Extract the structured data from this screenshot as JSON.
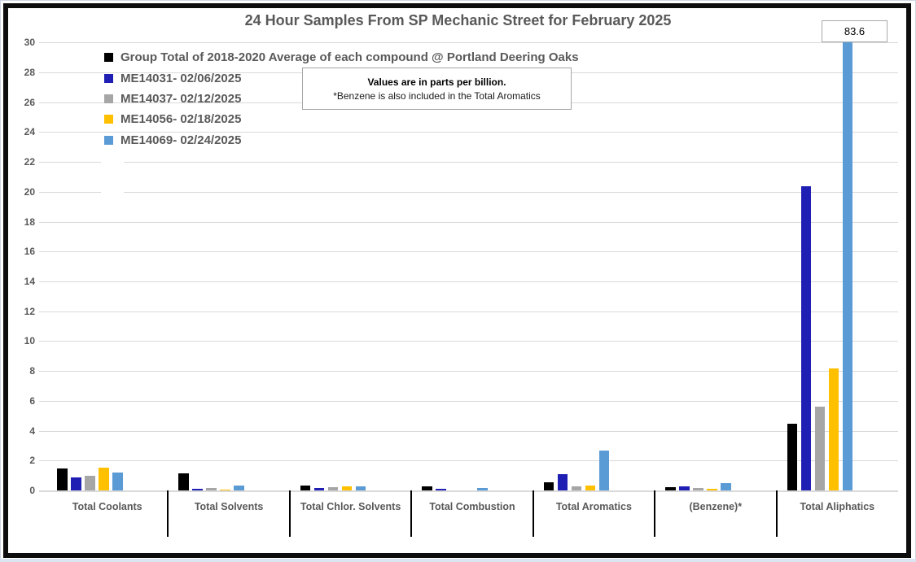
{
  "title": "24 Hour Samples From SP Mechanic Street for February 2025",
  "note_box": {
    "line1": "Values are in parts per billion.",
    "line2": "*Benzene is also included in the Total Aromatics"
  },
  "chart_data": {
    "type": "bar",
    "title": "24 Hour Samples From SP Mechanic Street for February 2025",
    "values_unit": "parts per billion",
    "categories": [
      "Total Coolants",
      "Total Solvents",
      "Total Chlor. Solvents",
      "Total Combustion",
      "Total Aromatics",
      "(Benzene)*",
      "Total Aliphatics"
    ],
    "series": [
      {
        "name": "Group Total of 2018-2020 Average of each compound @ Portland Deering Oaks",
        "color": "#000000",
        "values": [
          1.5,
          1.15,
          0.35,
          0.25,
          0.55,
          0.2,
          4.45
        ]
      },
      {
        "name": "ME14031- 02/06/2025",
        "color": "#1f1fb4",
        "values": [
          0.9,
          0.1,
          0.15,
          0.1,
          1.1,
          0.25,
          20.4
        ]
      },
      {
        "name": "ME14037- 02/12/2025",
        "color": "#a6a6a6",
        "values": [
          1.0,
          0.15,
          0.2,
          0,
          0.3,
          0.15,
          5.6
        ]
      },
      {
        "name": "ME14056- 02/18/2025",
        "color": "#ffc000",
        "values": [
          1.55,
          0.05,
          0.25,
          0,
          0.35,
          0.1,
          8.15
        ]
      },
      {
        "name": "ME14069- 02/24/2025",
        "color": "#5b9bd5",
        "values": [
          1.2,
          0.35,
          0.25,
          0.15,
          2.65,
          0.5,
          83.6
        ]
      }
    ],
    "ylim": [
      0,
      30
    ],
    "y_tick_step": 2,
    "grid": true,
    "legend_position": "upper-left",
    "annotations": [
      {
        "series": "ME14069- 02/24/2025",
        "category": "Total Aliphatics",
        "label": "83.6",
        "note": "bar clipped at axis top"
      }
    ]
  }
}
